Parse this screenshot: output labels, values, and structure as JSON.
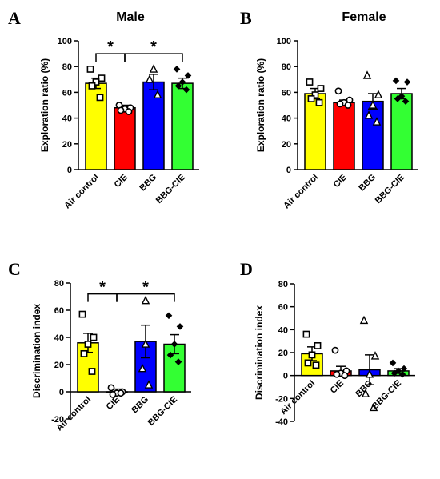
{
  "chart_data": [
    {
      "type": "bar",
      "panel_label": "A",
      "title": "Male",
      "ylabel": "Exploration ratio (%)",
      "ylim": [
        0,
        100
      ],
      "yticks": [
        0,
        20,
        40,
        60,
        80,
        100
      ],
      "categories": [
        "Air control",
        "CIE",
        "BBG",
        "BBG-CIE"
      ],
      "values": [
        67,
        48,
        68,
        67
      ],
      "sem": [
        4,
        2,
        6,
        4
      ],
      "colors": [
        "#ffff00",
        "#ff0000",
        "#0000ff",
        "#33ff33"
      ],
      "markers": [
        "square",
        "circle",
        "triangle",
        "diamond"
      ],
      "points": [
        [
          78,
          71,
          68,
          65,
          56
        ],
        [
          50,
          48,
          47,
          46,
          45
        ],
        [
          78,
          70,
          58
        ],
        [
          78,
          73,
          68,
          65,
          62
        ]
      ],
      "significance": [
        {
          "from": 0,
          "to": 1,
          "label": "*",
          "y": 90
        },
        {
          "from": 1,
          "to": 3,
          "label": "*",
          "y": 90
        }
      ]
    },
    {
      "type": "bar",
      "panel_label": "B",
      "title": "Female",
      "ylabel": "Exploration ratio (%)",
      "ylim": [
        0,
        100
      ],
      "yticks": [
        0,
        20,
        40,
        60,
        80,
        100
      ],
      "categories": [
        "Air control",
        "CIE",
        "BBG",
        "BBG-CIE"
      ],
      "values": [
        59,
        52,
        53,
        59
      ],
      "sem": [
        4,
        2,
        6,
        4
      ],
      "colors": [
        "#ffff00",
        "#ff0000",
        "#0000ff",
        "#33ff33"
      ],
      "markers": [
        "square",
        "circle",
        "triangle",
        "diamond"
      ],
      "points": [
        [
          68,
          63,
          58,
          55,
          52
        ],
        [
          61,
          54,
          52,
          51,
          50
        ],
        [
          73,
          58,
          50,
          42,
          37
        ],
        [
          69,
          68,
          57,
          55,
          53
        ]
      ],
      "significance": []
    },
    {
      "type": "bar",
      "panel_label": "C",
      "title": "",
      "ylabel": "Discrimination index",
      "ylim": [
        -20,
        80
      ],
      "yticks": [
        -20,
        0,
        20,
        40,
        60,
        80
      ],
      "categories": [
        "Air control",
        "CIE",
        "BBG",
        "BBG-CIE"
      ],
      "values": [
        36,
        0,
        37,
        35
      ],
      "sem": [
        7,
        2,
        12,
        7
      ],
      "colors": [
        "#ffff00",
        "#ff0000",
        "#0000ff",
        "#33ff33"
      ],
      "markers": [
        "square",
        "circle",
        "triangle",
        "diamond"
      ],
      "points": [
        [
          57,
          40,
          35,
          28,
          15
        ],
        [
          3,
          0,
          -1,
          -2,
          -1
        ],
        [
          67,
          35,
          17,
          5
        ],
        [
          56,
          48,
          35,
          27,
          22
        ]
      ],
      "significance": [
        {
          "from": 0,
          "to": 1,
          "label": "*",
          "y": 72
        },
        {
          "from": 1,
          "to": 3,
          "label": "*",
          "y": 72
        }
      ]
    },
    {
      "type": "bar",
      "panel_label": "D",
      "title": "",
      "ylabel": "Discrimination index",
      "ylim": [
        -40,
        80
      ],
      "yticks": [
        -40,
        -20,
        0,
        20,
        40,
        60,
        80
      ],
      "categories": [
        "Air control",
        "CIE",
        "BBG",
        "BBG-CIE"
      ],
      "values": [
        19,
        4,
        5,
        4
      ],
      "sem": [
        6,
        4,
        13,
        2
      ],
      "colors": [
        "#ffff00",
        "#ff0000",
        "#0000ff",
        "#33ff33"
      ],
      "markers": [
        "square",
        "circle",
        "triangle",
        "diamond"
      ],
      "points": [
        [
          36,
          26,
          18,
          11,
          9
        ],
        [
          22,
          4,
          2,
          1,
          0
        ],
        [
          48,
          17,
          1,
          -16,
          -28
        ],
        [
          11,
          6,
          4,
          2,
          1
        ]
      ],
      "significance": []
    }
  ]
}
